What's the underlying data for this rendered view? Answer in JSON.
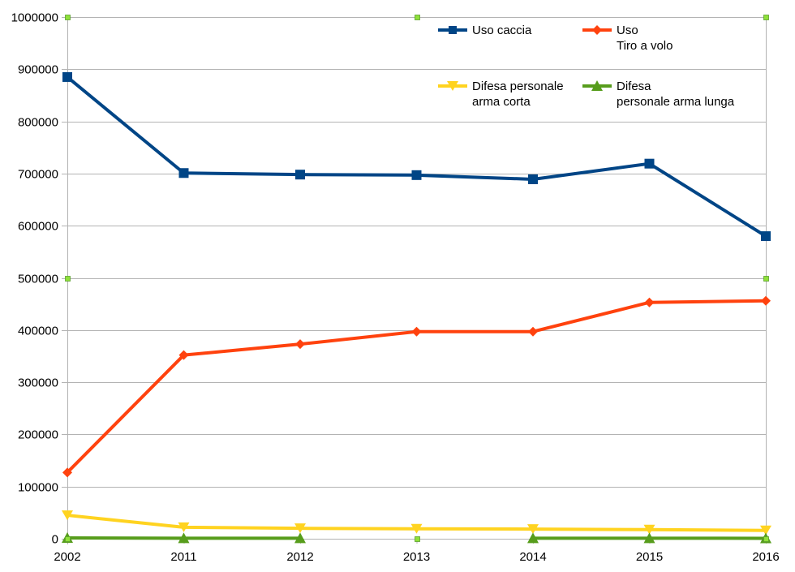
{
  "chart_data": {
    "type": "line",
    "title": "",
    "xlabel": "",
    "ylabel": "",
    "categories": [
      "2002",
      "2011",
      "2012",
      "2013",
      "2014",
      "2015",
      "2016"
    ],
    "ylim": [
      0,
      1000000
    ],
    "yticks": [
      0,
      100000,
      200000,
      300000,
      400000,
      500000,
      600000,
      700000,
      800000,
      900000,
      1000000
    ],
    "ytick_labels": [
      "0",
      "100000",
      "200000",
      "300000",
      "400000",
      "500000",
      "600000",
      "700000",
      "800000",
      "900000",
      "1000000"
    ],
    "grid": "horizontal",
    "legend_position": "top-right",
    "series": [
      {
        "name": "Uso caccia",
        "legend_lines": [
          "Uso caccia"
        ],
        "color": "#004586",
        "marker": "square",
        "values": [
          885000,
          701000,
          698000,
          697000,
          689000,
          719000,
          580000
        ]
      },
      {
        "name": "Uso Tiro a volo",
        "legend_lines": [
          "Uso",
          "Tiro a volo"
        ],
        "color": "#ff420e",
        "marker": "diamond",
        "values": [
          127000,
          352000,
          373000,
          397000,
          397000,
          453000,
          456000
        ]
      },
      {
        "name": "Difesa personale arma corta",
        "legend_lines": [
          "Difesa personale",
          "arma corta"
        ],
        "color": "#ffd320",
        "marker": "triangle-down",
        "values": [
          45000,
          22000,
          20000,
          19000,
          18500,
          17500,
          16000
        ]
      },
      {
        "name": "Difesa personale arma lunga",
        "legend_lines": [
          "Difesa",
          "personale arma lunga"
        ],
        "color": "#579d1c",
        "marker": "triangle-up",
        "values": [
          1500,
          1000,
          1000,
          null,
          1000,
          1000,
          800
        ]
      }
    ],
    "selection_handle_color": "#8fe03a"
  }
}
